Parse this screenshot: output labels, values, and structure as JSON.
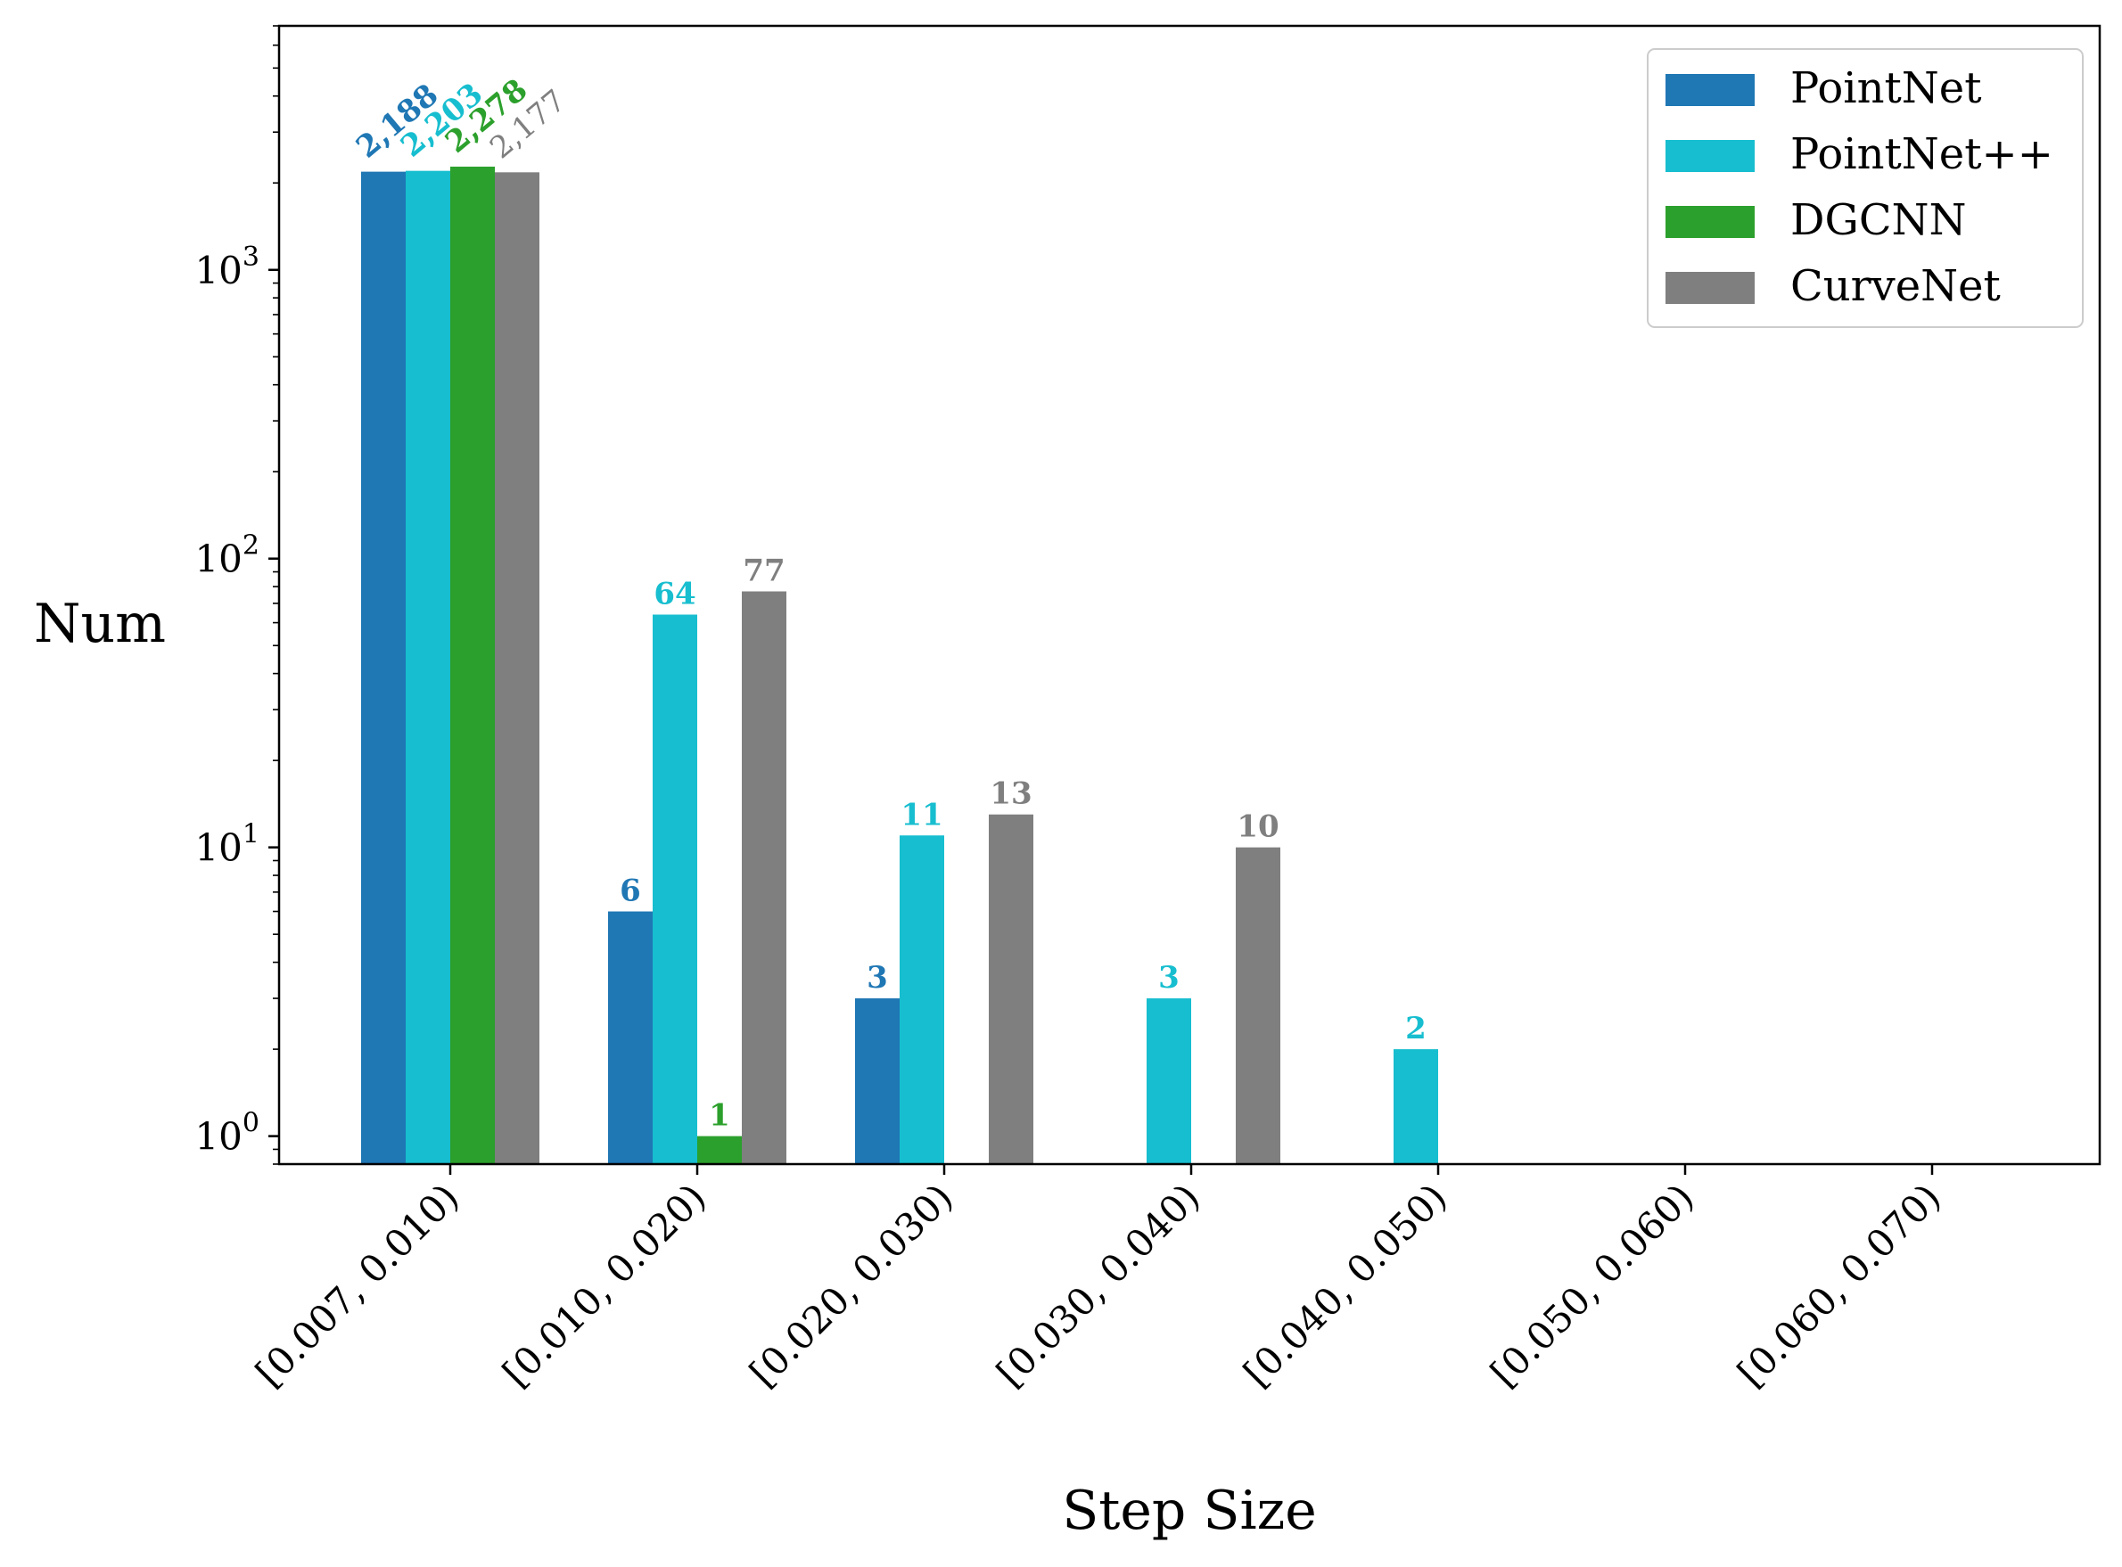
{
  "chart_data": {
    "type": "bar",
    "title": "",
    "xlabel": "Step Size",
    "ylabel": "Num",
    "yscale": "log",
    "ylim": [
      0.8,
      7000
    ],
    "grid": false,
    "legend_position": "top-right",
    "categories": [
      "[0.007, 0.010)",
      "[0.010, 0.020)",
      "[0.020, 0.030)",
      "[0.030, 0.040)",
      "[0.040, 0.050)",
      "[0.050, 0.060)",
      "[0.060, 0.070)"
    ],
    "yticks": [
      {
        "base": "10",
        "exp": "0",
        "value": 1
      },
      {
        "base": "10",
        "exp": "1",
        "value": 10
      },
      {
        "base": "10",
        "exp": "2",
        "value": 100
      },
      {
        "base": "10",
        "exp": "3",
        "value": 1000
      }
    ],
    "series": [
      {
        "name": "PointNet",
        "color": "#1f77b4",
        "values": [
          2188,
          6,
          3,
          0,
          0,
          0,
          0
        ],
        "labels": [
          "2,188",
          "6",
          "3",
          "",
          "",
          "",
          ""
        ]
      },
      {
        "name": "PointNet++",
        "color": "#17becf",
        "values": [
          2203,
          64,
          11,
          3,
          2,
          0,
          0
        ],
        "labels": [
          "2,203",
          "64",
          "11",
          "3",
          "2",
          "",
          ""
        ]
      },
      {
        "name": "DGCNN",
        "color": "#2ca02c",
        "values": [
          2278,
          1,
          0,
          0,
          0,
          0,
          0
        ],
        "labels": [
          "2,278",
          "1",
          "",
          "",
          "",
          "",
          ""
        ]
      },
      {
        "name": "CurveNet",
        "color": "#7f7f7f",
        "values": [
          2177,
          77,
          13,
          10,
          0,
          0,
          0
        ],
        "labels": [
          "2,177",
          "77",
          "13",
          "10",
          "",
          "",
          ""
        ]
      }
    ]
  }
}
